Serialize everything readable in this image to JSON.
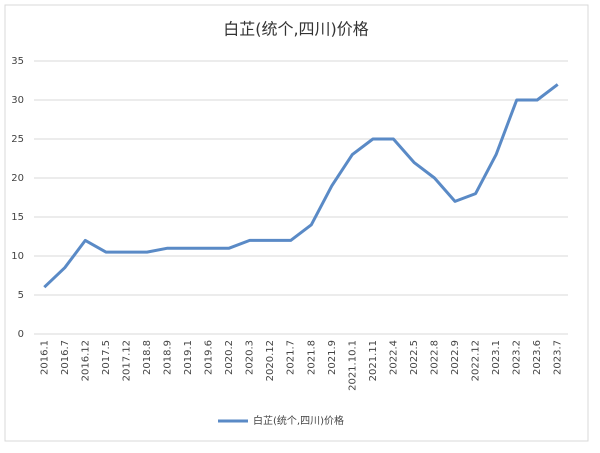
{
  "chart_data": {
    "type": "line",
    "title": "白芷(统个,四川)价格",
    "categories": [
      "2016.1",
      "2016.7",
      "2016.12",
      "2017.5",
      "2017.12",
      "2018.8",
      "2018.9",
      "2019.1",
      "2019.6",
      "2020.2",
      "2020.3",
      "2020.12",
      "2021.7",
      "2021.8",
      "2021.9",
      "2021.10.1",
      "2021.11",
      "2022.4",
      "2022.5",
      "2022.8",
      "2022.9",
      "2022.12",
      "2023.1",
      "2023.2",
      "2023.6",
      "2023.7"
    ],
    "series": [
      {
        "name": "白芷(统个,四川)价格",
        "color": "#5a8ac6",
        "values": [
          6,
          8.5,
          12,
          10.5,
          10.5,
          10.5,
          11,
          11,
          11,
          11,
          12,
          12,
          12,
          14,
          19,
          23,
          25,
          25,
          22,
          20,
          17,
          18,
          23,
          30,
          30,
          32
        ]
      }
    ],
    "ylim": [
      0,
      35
    ],
    "yticks": [
      0,
      5,
      10,
      15,
      20,
      25,
      30,
      35
    ],
    "grid": true,
    "legend": "bottom"
  }
}
